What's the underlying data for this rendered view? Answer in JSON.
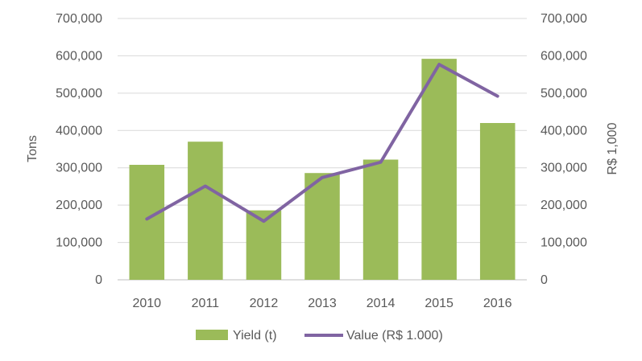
{
  "chart_data": {
    "type": "bar",
    "categories": [
      "2010",
      "2011",
      "2012",
      "2013",
      "2014",
      "2015",
      "2016"
    ],
    "series": [
      {
        "name": "Yield (t)",
        "type": "bar",
        "axis": "left",
        "color": "#9BBB59",
        "values": [
          308000,
          370000,
          186000,
          286000,
          322000,
          592000,
          420000
        ]
      },
      {
        "name": "Value (R$ 1.000)",
        "type": "line",
        "axis": "right",
        "color": "#8064A2",
        "values": [
          163000,
          251000,
          157000,
          274000,
          315000,
          577000,
          492000
        ]
      }
    ],
    "ylabel": "Tons",
    "y2label": "R$ 1,000",
    "ylim": [
      0,
      700000
    ],
    "y2lim": [
      0,
      700000
    ],
    "yticks": [
      "0",
      "100,000",
      "200,000",
      "300,000",
      "400,000",
      "500,000",
      "600,000",
      "700,000"
    ],
    "y2ticks": [
      "0",
      "100,000",
      "200,000",
      "300,000",
      "400,000",
      "500,000",
      "600,000",
      "700,000"
    ],
    "grid": true,
    "legend": "bottom"
  }
}
